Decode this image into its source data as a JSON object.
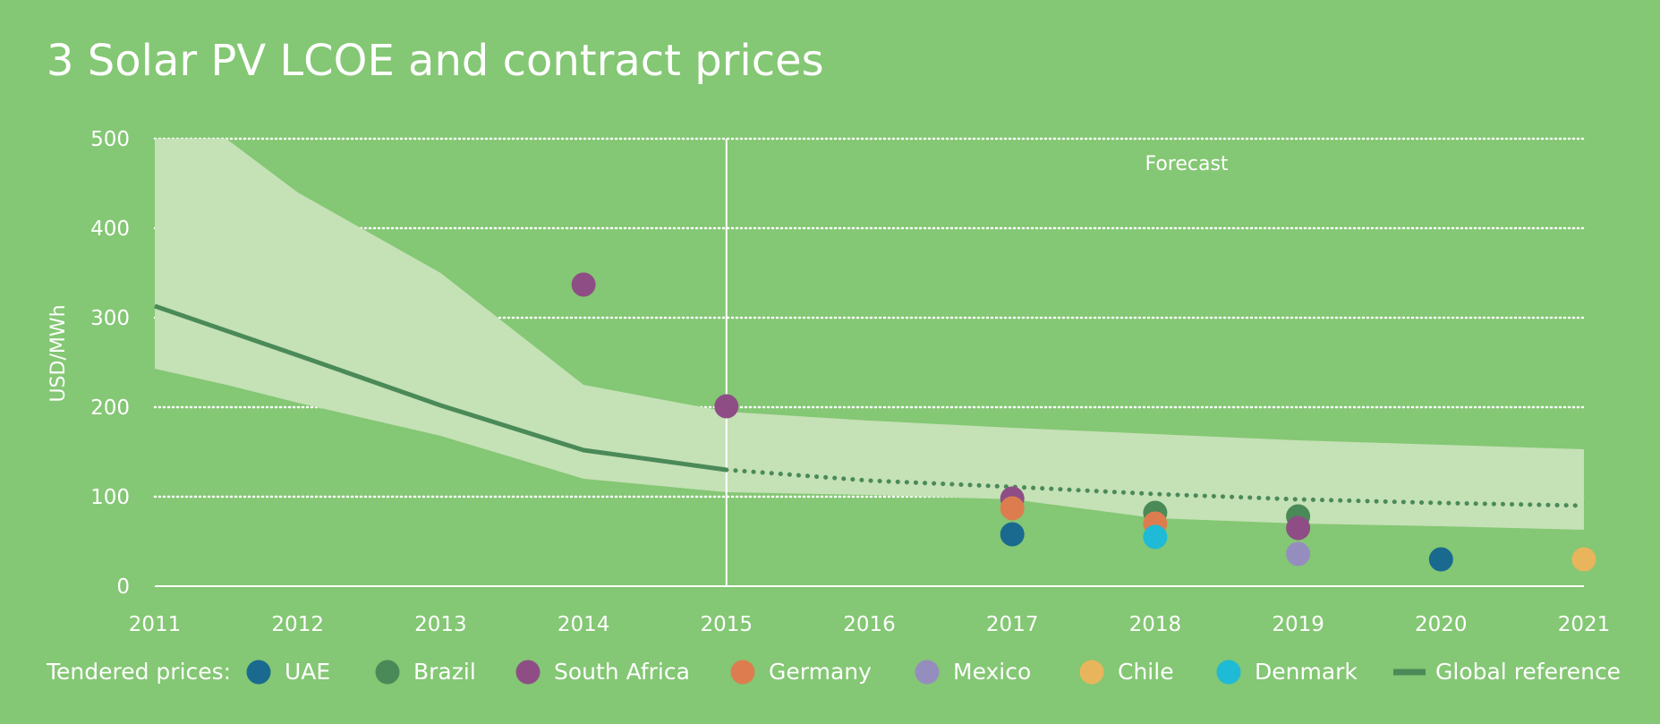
{
  "title": "3 Solar PV LCOE and contract prices",
  "colors": {
    "background": "#84c774",
    "band": "#c5e1b6",
    "reference_line": "#4a8a58",
    "grid": "#ffffff"
  },
  "chart_data": {
    "type": "line",
    "ylabel": "USD/MWh",
    "xlabel": "",
    "xlim": [
      2011,
      2021
    ],
    "ylim": [
      0,
      500
    ],
    "x_ticks": [
      "2011",
      "2012",
      "2013",
      "2014",
      "2015",
      "2016",
      "2017",
      "2018",
      "2019",
      "2020",
      "2021"
    ],
    "y_ticks": [
      "0",
      "100",
      "200",
      "300",
      "400",
      "500"
    ],
    "grid": "horizontal-dotted",
    "forecast_start": 2015,
    "forecast_label": "Forecast",
    "range_band": {
      "x": [
        2011,
        2011.5,
        2012,
        2013,
        2014,
        2015,
        2016,
        2017,
        2018,
        2019,
        2020,
        2021
      ],
      "upper": [
        500,
        500,
        440,
        350,
        225,
        195,
        185,
        177,
        170,
        163,
        158,
        153
      ],
      "lower": [
        243,
        225,
        205,
        168,
        120,
        105,
        102,
        97,
        76,
        70,
        67,
        63
      ]
    },
    "reference_line": {
      "name": "Global reference",
      "x": [
        2011,
        2012,
        2013,
        2014,
        2015,
        2016,
        2017,
        2018,
        2019,
        2020,
        2021
      ],
      "y": [
        313,
        258,
        202,
        152,
        130,
        118,
        111,
        103,
        97,
        93,
        90
      ],
      "dotted_from": 2015
    },
    "series": [
      {
        "name": "UAE",
        "color": "#1a6a8f",
        "points": [
          [
            2017,
            58
          ],
          [
            2020,
            30
          ]
        ]
      },
      {
        "name": "Brazil",
        "color": "#4a8a58",
        "points": [
          [
            2018,
            82
          ],
          [
            2019,
            78
          ]
        ]
      },
      {
        "name": "South Africa",
        "color": "#8e4e85",
        "points": [
          [
            2014,
            337
          ],
          [
            2015,
            201
          ],
          [
            2017,
            98
          ],
          [
            2019,
            65
          ]
        ]
      },
      {
        "name": "Germany",
        "color": "#dd7d4f",
        "points": [
          [
            2017,
            87
          ],
          [
            2018,
            70
          ]
        ]
      },
      {
        "name": "Mexico",
        "color": "#968dbf",
        "points": [
          [
            2019,
            36
          ]
        ]
      },
      {
        "name": "Chile",
        "color": "#e8b55c",
        "points": [
          [
            2021,
            30
          ]
        ]
      },
      {
        "name": "Denmark",
        "color": "#1ebad6",
        "points": [
          [
            2018,
            55
          ]
        ]
      }
    ],
    "legend": {
      "position": "bottom",
      "label": "Tendered prices:",
      "items": [
        {
          "name": "UAE",
          "color": "#1a6a8f",
          "marker": "circle"
        },
        {
          "name": "Brazil",
          "color": "#4a8a58",
          "marker": "circle"
        },
        {
          "name": "South Africa",
          "color": "#8e4e85",
          "marker": "circle"
        },
        {
          "name": "Germany",
          "color": "#dd7d4f",
          "marker": "circle"
        },
        {
          "name": "Mexico",
          "color": "#968dbf",
          "marker": "circle"
        },
        {
          "name": "Chile",
          "color": "#e8b55c",
          "marker": "circle"
        },
        {
          "name": "Denmark",
          "color": "#1ebad6",
          "marker": "circle"
        },
        {
          "name": "Global reference",
          "color": "#4a8a58",
          "marker": "line"
        }
      ]
    }
  }
}
